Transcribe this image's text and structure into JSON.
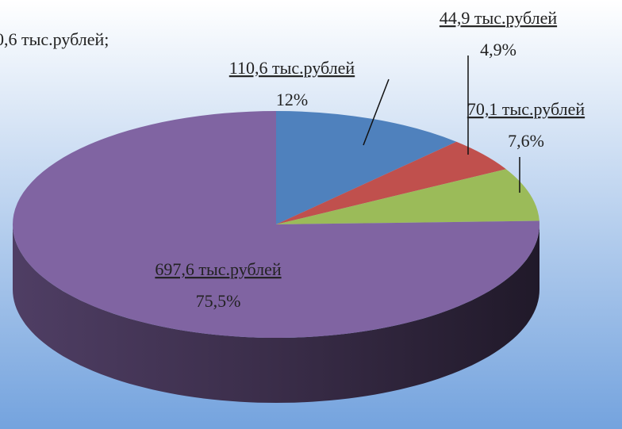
{
  "chart_data": {
    "type": "pie",
    "annotation": "0,6 тыс.рублей;",
    "categories": [
      "110,6 тыс.рублей",
      "44,9 тыс.рублей",
      "70,1 тыс.рублей",
      "697,6 тыс.рублей"
    ],
    "values": [
      12,
      4.9,
      7.6,
      75.5
    ],
    "value_labels": [
      "12%",
      "4,9%",
      "7,6%",
      "75,5%"
    ],
    "colors": [
      "#4f81bd",
      "#c0504d",
      "#9bbb59",
      "#8064a2"
    ]
  }
}
